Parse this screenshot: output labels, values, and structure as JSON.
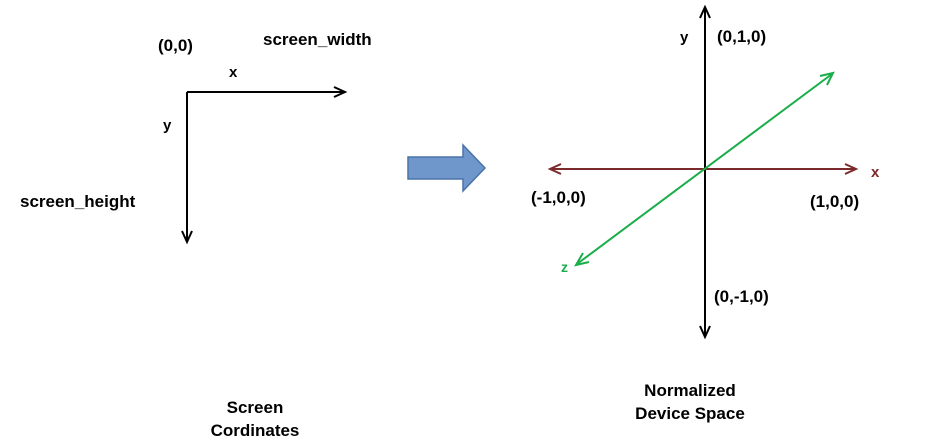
{
  "screen": {
    "origin_label": "(0,0)",
    "width_label": "screen_width",
    "x_label": "x",
    "y_label": "y",
    "height_label": "screen_height",
    "caption_line1": "Screen",
    "caption_line2": "Cordinates"
  },
  "ndc": {
    "y_label": "y",
    "x_label": "x",
    "z_label": "z",
    "pos_y_label": "(0,1,0)",
    "neg_y_label": "(0,-1,0)",
    "pos_x_label": "(1,0,0)",
    "neg_x_label": "(-1,0,0)",
    "caption_line1": "Normalized",
    "caption_line2": "Device Space"
  },
  "colors": {
    "axis_black": "#000000",
    "x_axis": "#7a2a2a",
    "z_axis": "#1aae4a",
    "arrow_fill": "#6f97cc",
    "arrow_stroke": "#4a73a8"
  }
}
